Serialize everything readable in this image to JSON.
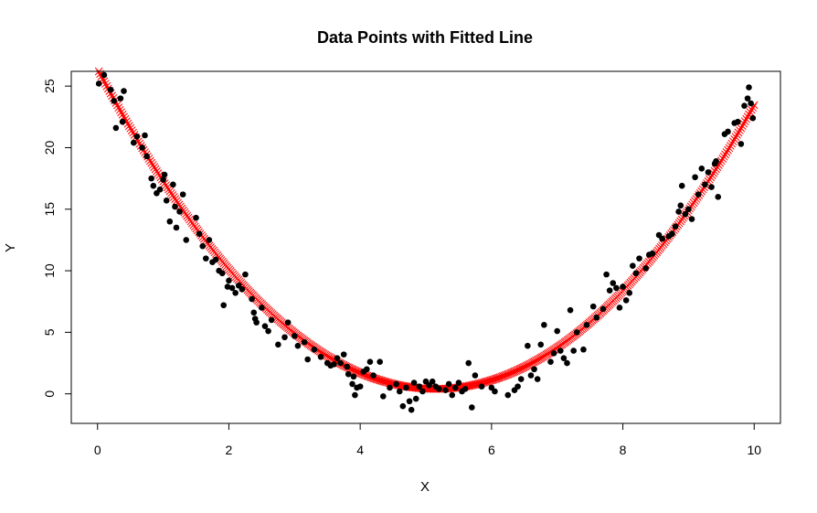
{
  "chart_data": {
    "type": "scatter",
    "title": "Data Points with Fitted Line",
    "xlabel": "X",
    "ylabel": "Y",
    "xlim": [
      -0.4,
      10.4
    ],
    "ylim": [
      -2.4,
      26.2
    ],
    "x_ticks": [
      0,
      2,
      4,
      6,
      8,
      10
    ],
    "y_ticks": [
      0,
      5,
      10,
      15,
      20,
      25
    ],
    "grid": false,
    "legend": "none",
    "series": [
      {
        "kind": "points",
        "marker": "filled-circle",
        "color": "#000000",
        "points": [
          [
            0.02,
            25.2
          ],
          [
            0.1,
            25.9
          ],
          [
            0.2,
            24.7
          ],
          [
            0.25,
            23.8
          ],
          [
            0.28,
            21.6
          ],
          [
            0.35,
            24.0
          ],
          [
            0.38,
            22.1
          ],
          [
            0.4,
            24.6
          ],
          [
            0.55,
            20.4
          ],
          [
            0.6,
            20.9
          ],
          [
            0.68,
            20.0
          ],
          [
            0.72,
            21.0
          ],
          [
            0.75,
            19.3
          ],
          [
            0.82,
            17.5
          ],
          [
            0.85,
            16.9
          ],
          [
            0.9,
            16.3
          ],
          [
            0.95,
            16.6
          ],
          [
            1.0,
            17.4
          ],
          [
            1.02,
            17.8
          ],
          [
            1.05,
            15.7
          ],
          [
            1.1,
            14.0
          ],
          [
            1.15,
            17.0
          ],
          [
            1.18,
            15.2
          ],
          [
            1.2,
            13.5
          ],
          [
            1.25,
            14.8
          ],
          [
            1.3,
            16.2
          ],
          [
            1.35,
            12.5
          ],
          [
            1.5,
            14.3
          ],
          [
            1.55,
            13.0
          ],
          [
            1.6,
            12.0
          ],
          [
            1.65,
            11.0
          ],
          [
            1.7,
            12.5
          ],
          [
            1.75,
            10.7
          ],
          [
            1.8,
            10.9
          ],
          [
            1.85,
            10.0
          ],
          [
            1.9,
            9.8
          ],
          [
            1.92,
            7.2
          ],
          [
            1.98,
            8.7
          ],
          [
            2.0,
            9.2
          ],
          [
            2.05,
            8.6
          ],
          [
            2.1,
            8.2
          ],
          [
            2.15,
            8.8
          ],
          [
            2.2,
            8.5
          ],
          [
            2.25,
            9.7
          ],
          [
            2.35,
            7.7
          ],
          [
            2.38,
            6.6
          ],
          [
            2.4,
            6.1
          ],
          [
            2.42,
            5.8
          ],
          [
            2.5,
            7.0
          ],
          [
            2.55,
            5.5
          ],
          [
            2.6,
            5.1
          ],
          [
            2.65,
            6.0
          ],
          [
            2.75,
            4.0
          ],
          [
            2.85,
            4.6
          ],
          [
            2.9,
            5.8
          ],
          [
            3.0,
            4.7
          ],
          [
            3.05,
            3.9
          ],
          [
            3.15,
            4.2
          ],
          [
            3.2,
            2.8
          ],
          [
            3.3,
            3.6
          ],
          [
            3.4,
            3.0
          ],
          [
            3.5,
            2.5
          ],
          [
            3.55,
            2.3
          ],
          [
            3.6,
            2.4
          ],
          [
            3.65,
            2.9
          ],
          [
            3.7,
            2.5
          ],
          [
            3.75,
            3.2
          ],
          [
            3.8,
            2.2
          ],
          [
            3.82,
            1.6
          ],
          [
            3.88,
            0.8
          ],
          [
            3.9,
            1.4
          ],
          [
            3.92,
            -0.1
          ],
          [
            3.95,
            0.5
          ],
          [
            4.0,
            0.6
          ],
          [
            4.05,
            1.8
          ],
          [
            4.1,
            2.0
          ],
          [
            4.15,
            2.6
          ],
          [
            4.2,
            1.5
          ],
          [
            4.3,
            2.6
          ],
          [
            4.35,
            -0.2
          ],
          [
            4.45,
            0.5
          ],
          [
            4.55,
            0.8
          ],
          [
            4.6,
            0.2
          ],
          [
            4.65,
            -1.0
          ],
          [
            4.7,
            0.5
          ],
          [
            4.75,
            -0.6
          ],
          [
            4.78,
            -1.3
          ],
          [
            4.82,
            0.9
          ],
          [
            4.85,
            -0.4
          ],
          [
            4.9,
            0.6
          ],
          [
            4.95,
            0.2
          ],
          [
            5.0,
            1.0
          ],
          [
            5.05,
            0.7
          ],
          [
            5.1,
            1.0
          ],
          [
            5.15,
            0.6
          ],
          [
            5.2,
            0.4
          ],
          [
            5.3,
            0.3
          ],
          [
            5.35,
            0.8
          ],
          [
            5.4,
            -0.1
          ],
          [
            5.45,
            0.5
          ],
          [
            5.5,
            0.9
          ],
          [
            5.55,
            0.2
          ],
          [
            5.6,
            0.4
          ],
          [
            5.65,
            2.5
          ],
          [
            5.7,
            -1.1
          ],
          [
            5.75,
            1.5
          ],
          [
            5.85,
            0.6
          ],
          [
            6.0,
            0.5
          ],
          [
            6.05,
            0.2
          ],
          [
            6.25,
            -0.1
          ],
          [
            6.35,
            0.3
          ],
          [
            6.4,
            0.6
          ],
          [
            6.45,
            1.2
          ],
          [
            6.55,
            3.9
          ],
          [
            6.6,
            1.5
          ],
          [
            6.65,
            2.0
          ],
          [
            6.7,
            1.2
          ],
          [
            6.75,
            4.0
          ],
          [
            6.8,
            5.6
          ],
          [
            6.9,
            2.6
          ],
          [
            6.95,
            3.3
          ],
          [
            7.0,
            5.1
          ],
          [
            7.05,
            3.5
          ],
          [
            7.1,
            2.9
          ],
          [
            7.15,
            2.5
          ],
          [
            7.2,
            6.8
          ],
          [
            7.25,
            3.5
          ],
          [
            7.3,
            5.0
          ],
          [
            7.4,
            3.6
          ],
          [
            7.45,
            5.6
          ],
          [
            7.55,
            7.1
          ],
          [
            7.6,
            6.2
          ],
          [
            7.7,
            6.9
          ],
          [
            7.75,
            9.7
          ],
          [
            7.8,
            8.4
          ],
          [
            7.85,
            9.0
          ],
          [
            7.9,
            8.6
          ],
          [
            7.95,
            7.0
          ],
          [
            8.0,
            8.7
          ],
          [
            8.05,
            7.6
          ],
          [
            8.1,
            8.2
          ],
          [
            8.15,
            10.4
          ],
          [
            8.2,
            9.8
          ],
          [
            8.25,
            11.0
          ],
          [
            8.35,
            10.2
          ],
          [
            8.4,
            11.3
          ],
          [
            8.45,
            11.4
          ],
          [
            8.55,
            12.9
          ],
          [
            8.6,
            12.6
          ],
          [
            8.7,
            12.8
          ],
          [
            8.75,
            13.0
          ],
          [
            8.8,
            13.6
          ],
          [
            8.85,
            14.8
          ],
          [
            8.88,
            15.3
          ],
          [
            8.9,
            16.9
          ],
          [
            8.95,
            14.6
          ],
          [
            9.0,
            15.0
          ],
          [
            9.05,
            14.2
          ],
          [
            9.1,
            17.6
          ],
          [
            9.15,
            16.2
          ],
          [
            9.2,
            18.3
          ],
          [
            9.25,
            17.0
          ],
          [
            9.3,
            18.0
          ],
          [
            9.35,
            16.8
          ],
          [
            9.4,
            18.7
          ],
          [
            9.42,
            18.9
          ],
          [
            9.45,
            16.0
          ],
          [
            9.55,
            21.1
          ],
          [
            9.6,
            21.3
          ],
          [
            9.7,
            22.0
          ],
          [
            9.75,
            22.1
          ],
          [
            9.8,
            20.3
          ],
          [
            9.85,
            23.4
          ],
          [
            9.9,
            24.0
          ],
          [
            9.92,
            24.9
          ],
          [
            9.95,
            23.6
          ],
          [
            9.98,
            22.4
          ]
        ]
      },
      {
        "kind": "fitted",
        "marker": "x",
        "color": "#ff0000",
        "model": "quadratic",
        "coefficients": {
          "a": 0.98,
          "vertex_x": 5.15,
          "vertex_y": 0.4
        },
        "x_range": [
          0,
          10
        ],
        "n": 500
      }
    ]
  }
}
